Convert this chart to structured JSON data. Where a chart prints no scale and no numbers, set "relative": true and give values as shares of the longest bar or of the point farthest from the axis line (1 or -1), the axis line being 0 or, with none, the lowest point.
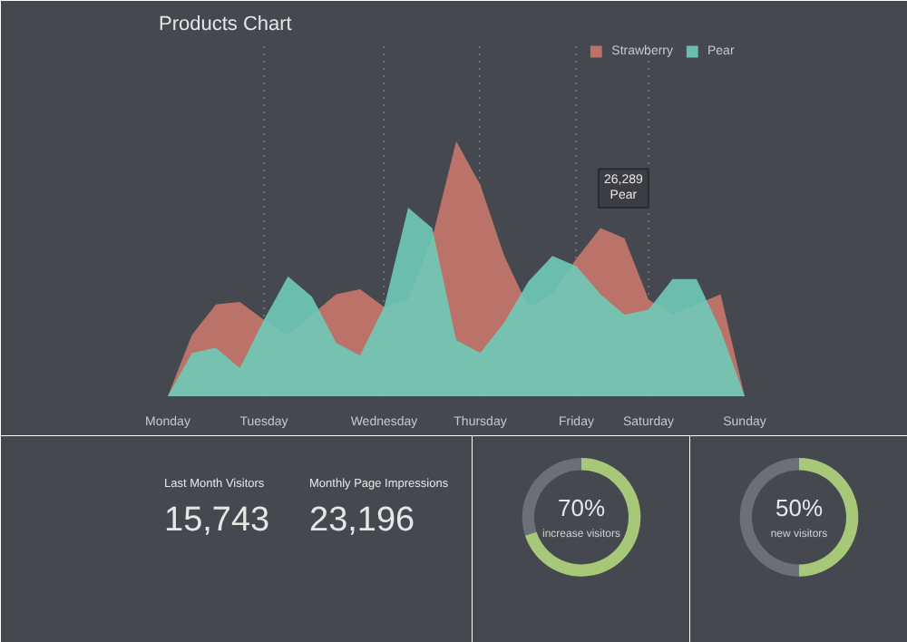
{
  "chart_data": [
    {
      "type": "area",
      "title": "Products Chart",
      "relative": true,
      "legend": "top right",
      "grid": "x",
      "categories": [
        "Monday",
        null,
        null,
        null,
        "Tuesday",
        null,
        null,
        null,
        null,
        "Wednesday",
        null,
        null,
        null,
        "Thursday",
        null,
        null,
        null,
        "Friday",
        null,
        null,
        "Saturday",
        null,
        null,
        null,
        "Sunday"
      ],
      "series": [
        {
          "name": "Strawberry",
          "color": "#c8786b",
          "values": [
            0,
            0.24,
            0.36,
            0.37,
            0.3,
            0.24,
            0.32,
            0.4,
            0.42,
            0.35,
            0.38,
            0.62,
            1.0,
            0.83,
            0.55,
            0.35,
            0.4,
            0.54,
            0.66,
            0.62,
            0.38,
            0.32,
            0.36,
            0.4,
            0
          ]
        },
        {
          "name": "Pear",
          "color": "#6fcab8",
          "values": [
            0,
            0.17,
            0.19,
            0.11,
            0.3,
            0.47,
            0.39,
            0.21,
            0.16,
            0.35,
            0.74,
            0.66,
            0.22,
            0.17,
            0.29,
            0.45,
            0.55,
            0.51,
            0.4,
            0.32,
            0.34,
            0.46,
            0.46,
            0.26,
            0
          ]
        }
      ],
      "annotations": [
        "26,289\nPear"
      ]
    },
    {
      "type": "other",
      "annotations": [
        "Last Month Visitors",
        "15,743",
        "Monthly Page Impressions",
        "23,196"
      ]
    },
    {
      "type": "donut",
      "categories": [
        null,
        null
      ],
      "values": [
        70,
        30
      ],
      "colors": [
        "#a6c878",
        "#6b6f78"
      ],
      "value_labels": [
        "70%",
        null
      ],
      "annotations": [
        "increase visitors"
      ]
    },
    {
      "type": "donut",
      "categories": [
        null,
        null
      ],
      "values": [
        50,
        50
      ],
      "colors": [
        "#a6c878",
        "#6b6f78"
      ],
      "value_labels": [
        "50%",
        null
      ],
      "annotations": [
        "new visitors"
      ]
    }
  ]
}
